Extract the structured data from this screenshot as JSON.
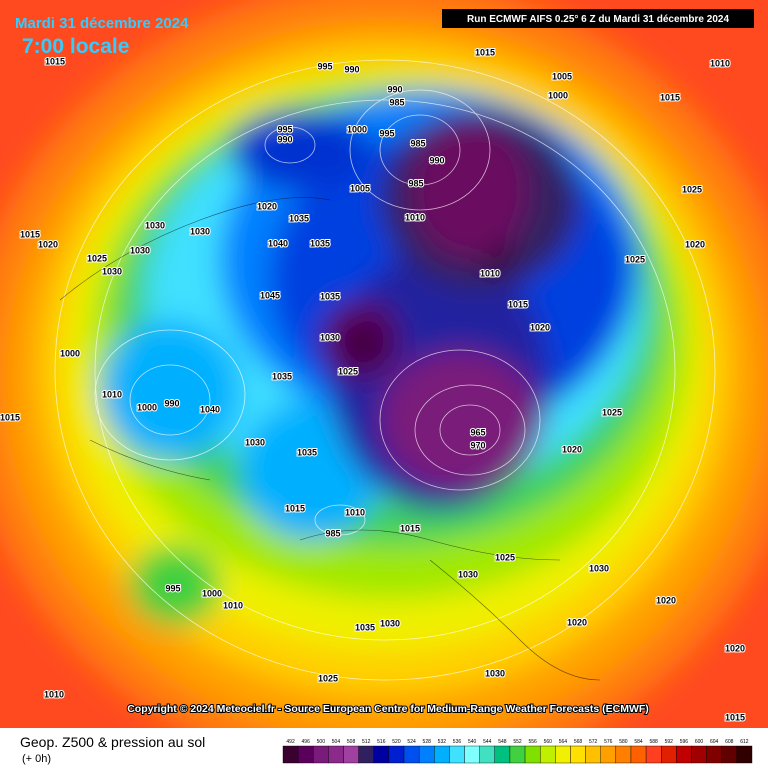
{
  "header": {
    "date": "Mardi 31 décembre 2024",
    "time": "7:00 locale",
    "run": "Run ECMWF AIFS 0.25° 6 Z du Mardi 31 décembre 2024"
  },
  "map": {
    "isobar_labels": [
      1015,
      995,
      990,
      990,
      985,
      1015,
      1005,
      1000,
      1010,
      1015,
      995,
      990,
      1000,
      995,
      985,
      990,
      985,
      1005,
      1010,
      1025,
      1020,
      1035,
      1030,
      1030,
      1015,
      1020,
      1040,
      1035,
      1010,
      1015,
      1020,
      1025,
      1020,
      1035,
      1030,
      1025,
      1045,
      1000,
      1010,
      1000,
      990,
      1040,
      1035,
      1030,
      1035,
      965,
      970,
      1020,
      1025,
      1015,
      985,
      1010,
      1015,
      1025,
      1030,
      1030,
      995,
      1000,
      1010,
      1035,
      1030,
      1020,
      1020,
      1020,
      1030,
      1025,
      1010,
      1015,
      1015,
      1030,
      1025,
      1030
    ]
  },
  "footer": {
    "copyright": "Copyright © 2024 Meteociel.fr - Source European Centre for Medium-Range Weather Forecasts (ECMWF)",
    "legend_title": "Geop. Z500 & pression au sol",
    "lead": "(+ 0h)"
  },
  "colorbar": {
    "levels": [
      492,
      496,
      500,
      504,
      508,
      512,
      516,
      520,
      524,
      528,
      532,
      536,
      540,
      544,
      548,
      552,
      556,
      560,
      564,
      568,
      572,
      576,
      580,
      584,
      588,
      592,
      596,
      600,
      604,
      608,
      612
    ],
    "colors": [
      "#3a0030",
      "#5a005a",
      "#7a1a7a",
      "#8c2a8c",
      "#a040a0",
      "#302060",
      "#0000a0",
      "#0020d0",
      "#0050f0",
      "#0080ff",
      "#00b0ff",
      "#40e0ff",
      "#80ffff",
      "#40e0c0",
      "#00c080",
      "#40d040",
      "#80e000",
      "#c0f000",
      "#f0f000",
      "#ffe000",
      "#ffc000",
      "#ffa000",
      "#ff8000",
      "#ff6000",
      "#ff4020",
      "#e02000",
      "#c00000",
      "#a00000",
      "#800000",
      "#600000",
      "#300000"
    ]
  }
}
